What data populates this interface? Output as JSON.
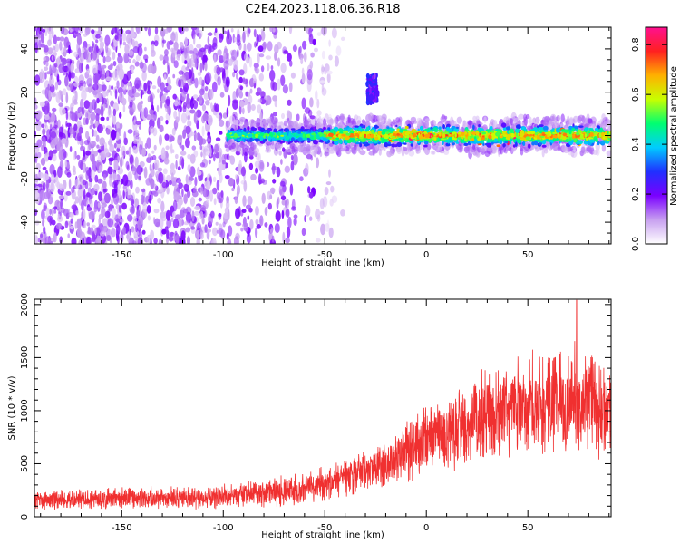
{
  "title": "C2E4.2023.118.06.36.R18",
  "colors": {
    "snr_line": "#f03030",
    "frame": "#000000",
    "colormap": [
      "#ffffff",
      "#c8a0f0",
      "#7a00ff",
      "#2030ff",
      "#00ccff",
      "#00ff70",
      "#c8ff00",
      "#ffb000",
      "#ff2020",
      "#ff1090"
    ]
  },
  "chart_data": [
    {
      "type": "heatmap",
      "xlabel": "Height of straight line (km)",
      "ylabel": "Frequency (Hz)",
      "xlim": [
        -193,
        91
      ],
      "ylim": [
        -50,
        50
      ],
      "x_ticks": [
        -150,
        -100,
        -50,
        0,
        50
      ],
      "y_ticks": [
        -40,
        -20,
        0,
        20,
        40
      ],
      "x_tick_labels": [
        "-150",
        "-100",
        "-50",
        "0",
        "50"
      ],
      "y_tick_labels": [
        "-40",
        "-20",
        "0",
        "20",
        "40"
      ],
      "regions": [
        {
          "desc": "noise",
          "x": [
            -193,
            -55
          ],
          "y": [
            -50,
            50
          ],
          "amplitude": [
            0.05,
            0.2
          ]
        },
        {
          "desc": "sparse noise",
          "x": [
            -55,
            -40
          ],
          "y": [
            -50,
            50
          ],
          "amplitude": [
            0.02,
            0.1
          ]
        },
        {
          "desc": "signal band",
          "x": [
            -98,
            91
          ],
          "y_center": 0,
          "half_width": 5,
          "amplitude": [
            0.2,
            0.85
          ]
        },
        {
          "desc": "spur",
          "x": [
            -29,
            -24
          ],
          "y": [
            15,
            28
          ],
          "amplitude": [
            0.15,
            0.3
          ]
        }
      ],
      "colorbar": {
        "label": "Normalized spectral amplitude",
        "range": [
          0,
          0.87
        ],
        "ticks": [
          0.0,
          0.2,
          0.4,
          0.6,
          0.8
        ],
        "tick_labels": [
          "0.0",
          "0.2",
          "0.4",
          "0.6",
          "0.8"
        ]
      }
    },
    {
      "type": "line",
      "xlabel": "Height of straight line (km)",
      "ylabel": "SNR (10 * v/v)",
      "xlim": [
        -193,
        91
      ],
      "ylim": [
        0,
        2050
      ],
      "x_ticks": [
        -150,
        -100,
        -50,
        0,
        50
      ],
      "y_ticks": [
        0,
        500,
        1000,
        1500,
        2000
      ],
      "x_tick_labels": [
        "-150",
        "-100",
        "-50",
        "0",
        "50"
      ],
      "y_tick_labels": [
        "0",
        "500",
        "1000",
        "1500",
        "2000"
      ],
      "series": [
        {
          "trend": [
            {
              "x": -193,
              "y": 160
            },
            {
              "x": -150,
              "y": 170
            },
            {
              "x": -100,
              "y": 190
            },
            {
              "x": -75,
              "y": 230
            },
            {
              "x": -50,
              "y": 290
            },
            {
              "x": -40,
              "y": 380
            },
            {
              "x": -25,
              "y": 470
            },
            {
              "x": -15,
              "y": 560
            },
            {
              "x": -5,
              "y": 680
            },
            {
              "x": 0,
              "y": 720
            },
            {
              "x": 10,
              "y": 760
            },
            {
              "x": 25,
              "y": 930
            },
            {
              "x": 50,
              "y": 1050
            },
            {
              "x": 75,
              "y": 1080
            },
            {
              "x": 91,
              "y": 1070
            }
          ],
          "peak": {
            "x": 74,
            "y": 2040
          }
        }
      ]
    }
  ]
}
